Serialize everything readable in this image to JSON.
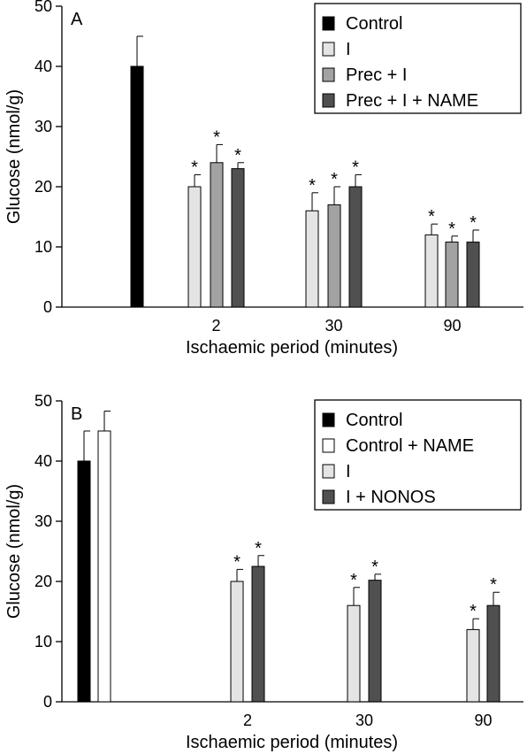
{
  "chart_data": [
    {
      "type": "bar",
      "panel_label": "A",
      "xlabel": "Ischaemic period (minutes)",
      "ylabel": "Glucose (nmol/g)",
      "ylim": [
        0,
        50
      ],
      "yticks": [
        "0",
        "10",
        "20",
        "30",
        "40",
        "50"
      ],
      "categories": [
        "",
        "2",
        "30",
        "90"
      ],
      "legend_position": "top-right",
      "series": [
        {
          "name": "Control",
          "color": "#000000",
          "values": [
            40,
            null,
            null,
            null
          ],
          "errors": [
            5,
            null,
            null,
            null
          ],
          "sig": [
            false,
            false,
            false,
            false
          ]
        },
        {
          "name": "I",
          "color": "#e4e4e4",
          "values": [
            null,
            20,
            16,
            12
          ],
          "errors": [
            null,
            2,
            3,
            1.8
          ],
          "sig": [
            false,
            true,
            true,
            true
          ]
        },
        {
          "name": "Prec + I",
          "color": "#a2a2a2",
          "values": [
            null,
            24,
            17,
            10.8
          ],
          "errors": [
            null,
            3,
            3,
            1
          ],
          "sig": [
            false,
            true,
            true,
            true
          ]
        },
        {
          "name": "Prec + I + NAME",
          "color": "#505050",
          "values": [
            null,
            23,
            20,
            10.8
          ],
          "errors": [
            null,
            1,
            2,
            2
          ],
          "sig": [
            false,
            true,
            true,
            true
          ]
        }
      ],
      "significance_marker": "*"
    },
    {
      "type": "bar",
      "panel_label": "B",
      "xlabel": "Ischaemic period (minutes)",
      "ylabel": "Glucose (nmol/g)",
      "ylim": [
        0,
        50
      ],
      "yticks": [
        "0",
        "10",
        "20",
        "30",
        "40",
        "50"
      ],
      "categories": [
        "",
        "2",
        "30",
        "90"
      ],
      "legend_position": "top-right",
      "series": [
        {
          "name": "Control",
          "color": "#000000",
          "values": [
            40,
            null,
            null,
            null
          ],
          "errors": [
            5,
            null,
            null,
            null
          ],
          "sig": [
            false,
            false,
            false,
            false
          ]
        },
        {
          "name": "Control + NAME",
          "color": "#ffffff",
          "values": [
            45,
            null,
            null,
            null
          ],
          "errors": [
            3.3,
            null,
            null,
            null
          ],
          "sig": [
            false,
            false,
            false,
            false
          ]
        },
        {
          "name": "I",
          "color": "#e4e4e4",
          "values": [
            null,
            20,
            16,
            12
          ],
          "errors": [
            null,
            2,
            3,
            1.8
          ],
          "sig": [
            false,
            true,
            true,
            true
          ]
        },
        {
          "name": "I + NONOS",
          "color": "#505050",
          "values": [
            null,
            22.5,
            20.2,
            16
          ],
          "errors": [
            null,
            1.8,
            1,
            2.2
          ],
          "sig": [
            false,
            true,
            true,
            true
          ]
        }
      ],
      "significance_marker": "*"
    }
  ]
}
